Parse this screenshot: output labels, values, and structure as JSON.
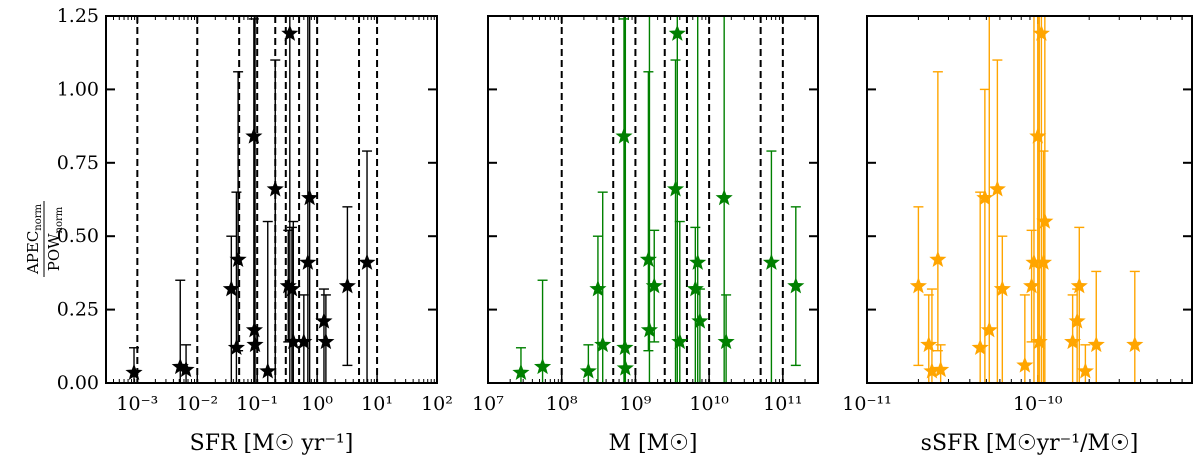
{
  "chart_data": [
    {
      "type": "scatter",
      "color": "#000000",
      "xlabel": "SFR [M☉ yr⁻¹]",
      "ylabel": "APEC_norm / POW_norm",
      "ylabel_num": "APEC",
      "ylabel_num_sub": "norm",
      "ylabel_den": "POW",
      "ylabel_den_sub": "norm",
      "xscale": "log",
      "xlim": [
        0.0003,
        100
      ],
      "ylim": [
        0,
        1.25
      ],
      "grid": false,
      "x_ticks": [
        "10⁻³",
        "10⁻²",
        "10⁻¹",
        "10⁰",
        "10¹",
        "10²"
      ],
      "y_ticks": [
        "0.00",
        "0.25",
        "0.50",
        "0.75",
        "1.00",
        "1.25"
      ],
      "vlines": [
        0.001,
        0.01,
        0.05,
        0.1,
        0.2,
        0.3,
        0.5,
        1,
        5,
        10
      ],
      "points": [
        {
          "x": 0.00088,
          "y": 0.035,
          "lo": 0.0,
          "hi": 0.12
        },
        {
          "x": 0.0052,
          "y": 0.055,
          "lo": 0.0,
          "hi": 0.35
        },
        {
          "x": 0.0065,
          "y": 0.045,
          "lo": 0.0,
          "hi": 0.13
        },
        {
          "x": 0.037,
          "y": 0.32,
          "lo": 0.0,
          "hi": 0.5
        },
        {
          "x": 0.045,
          "y": 0.12,
          "lo": 0.0,
          "hi": 0.65
        },
        {
          "x": 0.048,
          "y": 0.42,
          "lo": 0.11,
          "hi": 1.06
        },
        {
          "x": 0.088,
          "y": 0.84,
          "lo": 0.0,
          "hi": 1.24
        },
        {
          "x": 0.09,
          "y": 0.18,
          "lo": 0.0,
          "hi": 1.25
        },
        {
          "x": 0.092,
          "y": 0.13,
          "lo": 0.0,
          "hi": 1.25
        },
        {
          "x": 0.15,
          "y": 0.04,
          "lo": 0.0,
          "hi": 0.55
        },
        {
          "x": 0.2,
          "y": 0.66,
          "lo": 0.0,
          "hi": 1.1
        },
        {
          "x": 0.33,
          "y": 0.33,
          "lo": 0.14,
          "hi": 0.52
        },
        {
          "x": 0.35,
          "y": 1.19,
          "lo": 0.0,
          "hi": 1.25
        },
        {
          "x": 0.38,
          "y": 0.32,
          "lo": 0.0,
          "hi": 0.53
        },
        {
          "x": 0.4,
          "y": 0.14,
          "lo": 0.0,
          "hi": 0.55
        },
        {
          "x": 0.6,
          "y": 0.14,
          "lo": 0.0,
          "hi": 0.3
        },
        {
          "x": 0.7,
          "y": 0.41,
          "lo": 0.0,
          "hi": 1.25
        },
        {
          "x": 0.75,
          "y": 0.63,
          "lo": 0.0,
          "hi": 1.25
        },
        {
          "x": 1.3,
          "y": 0.21,
          "lo": 0.0,
          "hi": 0.32
        },
        {
          "x": 1.4,
          "y": 0.14,
          "lo": 0.0,
          "hi": 0.3
        },
        {
          "x": 3.2,
          "y": 0.33,
          "lo": 0.06,
          "hi": 0.6
        },
        {
          "x": 6.8,
          "y": 0.41,
          "lo": 0.0,
          "hi": 0.79
        }
      ]
    },
    {
      "type": "scatter",
      "color": "#008000",
      "xlabel": "M [M☉]",
      "xscale": "log",
      "xlim": [
        10000000,
        300000000000
      ],
      "ylim": [
        0,
        1.25
      ],
      "grid": false,
      "x_ticks": [
        "10⁷",
        "10⁸",
        "10⁹",
        "10¹⁰",
        "10¹¹"
      ],
      "vlines": [
        100000000,
        500000000,
        1000000000,
        2500000000,
        5000000000,
        10000000000,
        50000000000,
        100000000000
      ],
      "points": [
        {
          "x": 28000000,
          "y": 0.035,
          "lo": 0.0,
          "hi": 0.12
        },
        {
          "x": 55000000,
          "y": 0.055,
          "lo": 0.0,
          "hi": 0.35
        },
        {
          "x": 230000000,
          "y": 0.04,
          "lo": 0.0,
          "hi": 0.13
        },
        {
          "x": 310000000,
          "y": 0.32,
          "lo": 0.0,
          "hi": 0.5
        },
        {
          "x": 360000000,
          "y": 0.13,
          "lo": 0.0,
          "hi": 0.65
        },
        {
          "x": 700000000,
          "y": 0.84,
          "lo": 0.0,
          "hi": 1.24
        },
        {
          "x": 720000000,
          "y": 0.12,
          "lo": 0.0,
          "hi": 1.25
        },
        {
          "x": 730000000,
          "y": 0.05,
          "lo": 0.0,
          "hi": 1.25
        },
        {
          "x": 1500000000,
          "y": 0.42,
          "lo": 0.11,
          "hi": 1.06
        },
        {
          "x": 1550000000,
          "y": 0.18,
          "lo": 0.0,
          "hi": 1.25
        },
        {
          "x": 1800000000,
          "y": 0.33,
          "lo": 0.14,
          "hi": 0.52
        },
        {
          "x": 3500000000,
          "y": 0.66,
          "lo": 0.0,
          "hi": 1.1
        },
        {
          "x": 3700000000,
          "y": 1.19,
          "lo": 0.0,
          "hi": 1.25
        },
        {
          "x": 4000000000,
          "y": 0.14,
          "lo": 0.0,
          "hi": 0.55
        },
        {
          "x": 6500000000,
          "y": 0.32,
          "lo": 0.0,
          "hi": 0.53
        },
        {
          "x": 7000000000,
          "y": 0.41,
          "lo": 0.0,
          "hi": 1.25
        },
        {
          "x": 7500000000,
          "y": 0.21,
          "lo": 0.0,
          "hi": 0.32
        },
        {
          "x": 16000000000,
          "y": 0.63,
          "lo": 0.0,
          "hi": 1.25
        },
        {
          "x": 17000000000,
          "y": 0.14,
          "lo": 0.0,
          "hi": 0.3
        },
        {
          "x": 70000000000,
          "y": 0.41,
          "lo": 0.0,
          "hi": 0.79
        },
        {
          "x": 150000000000,
          "y": 0.33,
          "lo": 0.06,
          "hi": 0.6
        }
      ]
    },
    {
      "type": "scatter",
      "color": "#FFA500",
      "xlabel": "sSFR [M☉yr⁻¹/M☉]",
      "xscale": "log",
      "xlim": [
        1e-11,
        8e-10
      ],
      "ylim": [
        0,
        1.25
      ],
      "grid": false,
      "x_ticks": [
        "10⁻¹¹",
        "10⁻¹⁰"
      ],
      "vlines": [],
      "points": [
        {
          "x": 2e-11,
          "y": 0.33,
          "lo": 0.06,
          "hi": 0.6
        },
        {
          "x": 2.3e-11,
          "y": 0.13,
          "lo": 0.0,
          "hi": 0.3
        },
        {
          "x": 2.4e-11,
          "y": 0.04,
          "lo": 0.0,
          "hi": 0.32
        },
        {
          "x": 2.6e-11,
          "y": 0.42,
          "lo": 0.11,
          "hi": 1.06
        },
        {
          "x": 2.7e-11,
          "y": 0.045,
          "lo": 0.0,
          "hi": 0.13
        },
        {
          "x": 4.6e-11,
          "y": 0.12,
          "lo": 0.0,
          "hi": 0.65
        },
        {
          "x": 4.9e-11,
          "y": 0.63,
          "lo": 0.0,
          "hi": 1.0
        },
        {
          "x": 5.2e-11,
          "y": 0.18,
          "lo": 0.0,
          "hi": 1.25
        },
        {
          "x": 5.8e-11,
          "y": 0.66,
          "lo": 0.0,
          "hi": 1.1
        },
        {
          "x": 6.2e-11,
          "y": 0.32,
          "lo": 0.0,
          "hi": 0.5
        },
        {
          "x": 8.4e-11,
          "y": 0.06,
          "lo": 0.0,
          "hi": 0.3
        },
        {
          "x": 9.2e-11,
          "y": 0.33,
          "lo": 0.14,
          "hi": 0.52
        },
        {
          "x": 9.5e-11,
          "y": 0.41,
          "lo": 0.0,
          "hi": 1.25
        },
        {
          "x": 1e-10,
          "y": 0.84,
          "lo": 0.0,
          "hi": 1.25
        },
        {
          "x": 1.02e-10,
          "y": 0.14,
          "lo": 0.0,
          "hi": 1.25
        },
        {
          "x": 1.05e-10,
          "y": 1.19,
          "lo": 0.0,
          "hi": 1.25
        },
        {
          "x": 1.08e-10,
          "y": 0.41,
          "lo": 0.0,
          "hi": 0.79
        },
        {
          "x": 1.1e-10,
          "y": 0.55,
          "lo": 0.0,
          "hi": 1.25
        },
        {
          "x": 1.6e-10,
          "y": 0.14,
          "lo": 0.0,
          "hi": 0.3
        },
        {
          "x": 1.7e-10,
          "y": 0.21,
          "lo": 0.0,
          "hi": 0.32
        },
        {
          "x": 1.75e-10,
          "y": 0.33,
          "lo": 0.0,
          "hi": 0.53
        },
        {
          "x": 1.9e-10,
          "y": 0.04,
          "lo": 0.0,
          "hi": 0.13
        },
        {
          "x": 2.2e-10,
          "y": 0.13,
          "lo": 0.0,
          "hi": 0.38
        },
        {
          "x": 3.7e-10,
          "y": 0.13,
          "lo": 0.0,
          "hi": 0.38
        }
      ]
    }
  ]
}
